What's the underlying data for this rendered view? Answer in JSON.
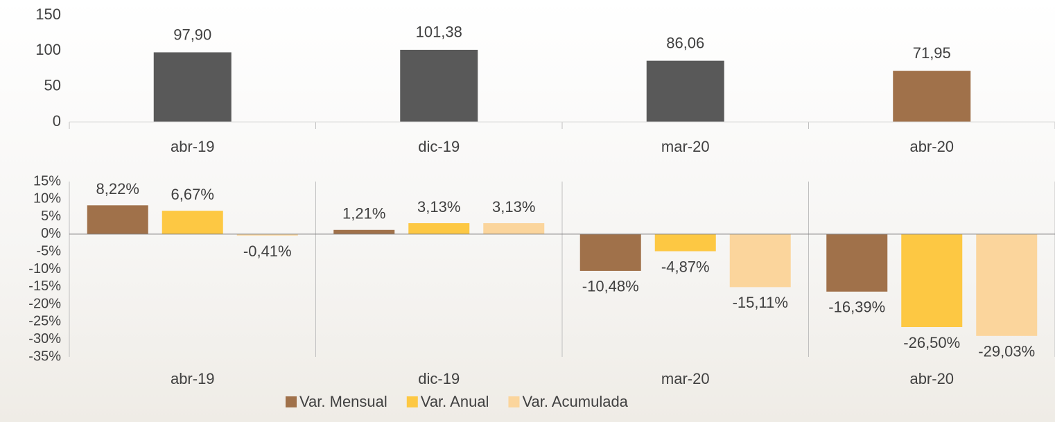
{
  "chart_data": [
    {
      "type": "bar",
      "categories": [
        "abr-19",
        "dic-19",
        "mar-20",
        "abr-20"
      ],
      "values": [
        97.9,
        101.38,
        86.06,
        71.95
      ],
      "value_labels": [
        "97,90",
        "101,38",
        "86,06",
        "71,95"
      ],
      "colors": [
        "#595959",
        "#595959",
        "#595959",
        "#a0714a"
      ],
      "ylim": [
        0,
        150
      ],
      "yticks": [
        0,
        50,
        100,
        150
      ],
      "grid": false
    },
    {
      "type": "grouped_bar",
      "categories": [
        "abr-19",
        "dic-19",
        "mar-20",
        "abr-20"
      ],
      "series": [
        {
          "name": "Var. Mensual",
          "color": "#a0714a",
          "values": [
            8.22,
            1.21,
            -10.48,
            -16.39
          ],
          "value_labels": [
            "8,22%",
            "1,21%",
            "-10,48%",
            "-16,39%"
          ]
        },
        {
          "name": "Var. Anual",
          "color": "#fdc843",
          "values": [
            6.67,
            3.13,
            -4.87,
            -26.5
          ],
          "value_labels": [
            "6,67%",
            "3,13%",
            "-4,87%",
            "-26,50%"
          ]
        },
        {
          "name": "Var. Acumulada",
          "color": "#fbd59c",
          "values": [
            -0.41,
            3.13,
            -15.11,
            -29.03
          ],
          "value_labels": [
            "-0,41%",
            "3,13%",
            "-15,11%",
            "-29,03%"
          ]
        }
      ],
      "ylim": [
        -35,
        15
      ],
      "yticks": [
        {
          "value": 15,
          "label": "15%"
        },
        {
          "value": 10,
          "label": "10%"
        },
        {
          "value": 5,
          "label": "5%"
        },
        {
          "value": 0,
          "label": "0%"
        },
        {
          "value": -5,
          "label": "-5%"
        },
        {
          "value": -10,
          "label": "-10%"
        },
        {
          "value": -15,
          "label": "-15%"
        },
        {
          "value": -20,
          "label": "-20%"
        },
        {
          "value": -25,
          "label": "-25%"
        },
        {
          "value": -30,
          "label": "-30%"
        },
        {
          "value": -35,
          "label": "-35%"
        }
      ],
      "legend": "bottom",
      "grid": false
    }
  ]
}
